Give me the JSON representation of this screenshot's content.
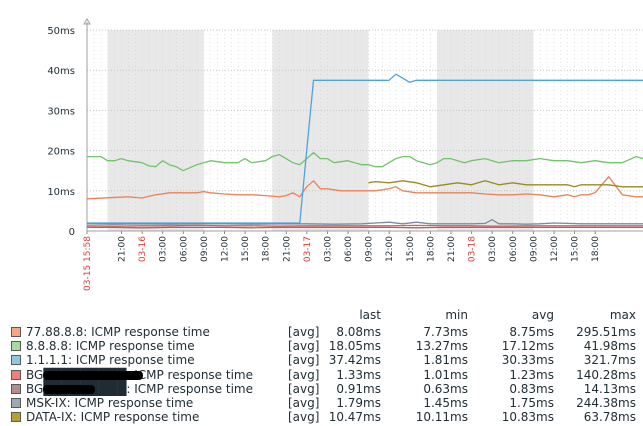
{
  "chart_data": {
    "type": "line",
    "ylim": [
      0,
      50
    ],
    "y_ticks": [
      "0",
      "10ms",
      "20ms",
      "30ms",
      "40ms",
      "50ms"
    ],
    "y_tick_values": [
      0,
      10,
      20,
      30,
      40,
      50
    ],
    "x_range_hours": [
      0,
      81
    ],
    "x_tick_labels": [
      {
        "h": 0,
        "label": "03-15 15:58",
        "major": true
      },
      {
        "h": 5.03,
        "label": "21:00",
        "major": false
      },
      {
        "h": 8.03,
        "label": "03-16",
        "major": true
      },
      {
        "h": 11.03,
        "label": "03:00",
        "major": false
      },
      {
        "h": 14.03,
        "label": "06:00",
        "major": false
      },
      {
        "h": 17.03,
        "label": "09:00",
        "major": false
      },
      {
        "h": 20.03,
        "label": "12:00",
        "major": false
      },
      {
        "h": 23.03,
        "label": "15:00",
        "major": false
      },
      {
        "h": 26.03,
        "label": "18:00",
        "major": false
      },
      {
        "h": 29.03,
        "label": "21:00",
        "major": false
      },
      {
        "h": 32.03,
        "label": "03-17",
        "major": true
      },
      {
        "h": 35.03,
        "label": "03:00",
        "major": false
      },
      {
        "h": 38.03,
        "label": "06:00",
        "major": false
      },
      {
        "h": 41.03,
        "label": "09:00",
        "major": false
      },
      {
        "h": 44.03,
        "label": "12:00",
        "major": false
      },
      {
        "h": 47.03,
        "label": "15:00",
        "major": false
      },
      {
        "h": 50.03,
        "label": "18:00",
        "major": false
      },
      {
        "h": 53.03,
        "label": "21:00",
        "major": false
      },
      {
        "h": 56.03,
        "label": "03-18",
        "major": true
      },
      {
        "h": 59.03,
        "label": "03:00",
        "major": false
      },
      {
        "h": 62.03,
        "label": "06:00",
        "major": false
      },
      {
        "h": 65.03,
        "label": "09:00",
        "major": false
      },
      {
        "h": 68.03,
        "label": "12:00",
        "major": false
      },
      {
        "h": 71.03,
        "label": "15:00",
        "major": false
      },
      {
        "h": 74.03,
        "label": "18:00",
        "major": false
      }
    ],
    "shaded_periods_hours": [
      [
        3,
        17
      ],
      [
        27,
        41
      ],
      [
        51,
        65
      ]
    ],
    "series": [
      {
        "name": "77.88.8.8: ICMP response time",
        "color": "#f4a582",
        "stroke": "#e8845a",
        "x": [
          0,
          6,
          8,
          10,
          12,
          16,
          17,
          18,
          20,
          22,
          24,
          26,
          28,
          29,
          30,
          31,
          32,
          33,
          34,
          35,
          37,
          40,
          42,
          44,
          45,
          46,
          48,
          50,
          52,
          54,
          56,
          58,
          60,
          62,
          64,
          66,
          68,
          70,
          71,
          72,
          73,
          74,
          76,
          78,
          80,
          81
        ],
        "values": [
          8,
          8.5,
          8.2,
          9,
          9.5,
          9.5,
          9.8,
          9.5,
          9.2,
          9,
          9,
          8.8,
          8.5,
          8.8,
          9.5,
          8.5,
          11,
          12.5,
          10.5,
          10.5,
          10,
          10,
          10,
          10.5,
          11,
          10,
          9.5,
          9.5,
          9.5,
          9.5,
          9.5,
          9.2,
          9,
          9,
          9.2,
          9,
          8.5,
          9,
          8.5,
          9,
          9,
          9.5,
          13.5,
          9,
          8.5,
          8.5
        ]
      },
      {
        "name": "8.8.8.8: ICMP response time",
        "color": "#a6dba0",
        "stroke": "#72c46a",
        "x": [
          0,
          2,
          3,
          4,
          5,
          6,
          8,
          9,
          10,
          11,
          12,
          13,
          14,
          16,
          17,
          18,
          20,
          22,
          23,
          24,
          26,
          27,
          28,
          30,
          31,
          32,
          33,
          34,
          35,
          36,
          38,
          40,
          41,
          42,
          43,
          44,
          45,
          46,
          47,
          48,
          50,
          51,
          52,
          53,
          54,
          55,
          56,
          58,
          60,
          62,
          64,
          66,
          68,
          70,
          72,
          74,
          76,
          78,
          80,
          81
        ],
        "values": [
          18.5,
          18.5,
          17.5,
          17.5,
          18,
          17.5,
          17,
          16.2,
          16,
          17.5,
          16.5,
          16,
          15,
          16.5,
          17,
          17.5,
          17,
          17,
          18,
          17,
          17.5,
          18.5,
          19,
          17,
          16.5,
          18,
          19.5,
          18,
          18,
          17,
          17.5,
          16.5,
          16.5,
          16,
          16,
          17,
          18,
          18.5,
          18.5,
          17.5,
          16.5,
          17,
          18,
          18,
          17.5,
          17,
          17.5,
          18,
          17,
          17.5,
          17.5,
          18,
          17.5,
          17.5,
          17,
          17.5,
          17,
          17,
          18.5,
          18
        ]
      },
      {
        "name": "1.1.1.1: ICMP response time",
        "color": "#92c5de",
        "stroke": "#4ea3db",
        "x": [
          0,
          2,
          6,
          10,
          16,
          18,
          22,
          26,
          30,
          31,
          32,
          33,
          34,
          36,
          38,
          40,
          44,
          45,
          46,
          47,
          48,
          50,
          52,
          54,
          56,
          58,
          60,
          62,
          64,
          66,
          68,
          70,
          72,
          74,
          76,
          78,
          80,
          81
        ],
        "values": [
          2,
          2,
          2,
          2,
          2,
          2,
          2,
          2,
          2,
          2,
          20,
          37.5,
          37.5,
          37.5,
          37.5,
          37.5,
          37.5,
          39,
          38,
          37,
          37.5,
          37.5,
          37.5,
          37.5,
          37.5,
          37.5,
          37.5,
          37.5,
          37.5,
          37.5,
          37.5,
          37.5,
          37.5,
          37.5,
          37.5,
          37.5,
          37.5,
          37.5
        ]
      },
      {
        "name": "BG█████████: ICMP response time",
        "color": "#f08080",
        "stroke": "#e06060",
        "x": [
          0,
          4,
          8,
          12,
          16,
          20,
          24,
          28,
          32,
          36,
          40,
          44,
          48,
          52,
          56,
          60,
          64,
          68,
          72,
          76,
          81
        ],
        "values": [
          1.3,
          1.2,
          1.3,
          1.3,
          1.4,
          1.3,
          1.3,
          1.2,
          1.3,
          1.3,
          1.3,
          1.3,
          1.4,
          1.3,
          1.3,
          1.2,
          1.3,
          1.3,
          1.3,
          1.3,
          1.3
        ]
      },
      {
        "name": "BG█████████: ICMP response time",
        "color": "#b58b8b",
        "stroke": "#9a6b6b",
        "x": [
          0,
          4,
          8,
          12,
          16,
          20,
          24,
          28,
          32,
          36,
          40,
          44,
          48,
          52,
          56,
          60,
          64,
          68,
          72,
          76,
          81
        ],
        "values": [
          0.9,
          0.9,
          0.8,
          0.9,
          0.9,
          0.9,
          0.8,
          0.9,
          0.9,
          0.9,
          0.9,
          0.9,
          0.8,
          0.9,
          0.9,
          0.9,
          0.9,
          0.9,
          0.9,
          0.9,
          0.9
        ]
      },
      {
        "name": "MSK-IX: ICMP response time",
        "color": "#9ea7b8",
        "stroke": "#7f8a9e",
        "x": [
          0,
          4,
          8,
          12,
          16,
          20,
          24,
          28,
          32,
          36,
          40,
          42,
          44,
          46,
          48,
          50,
          52,
          56,
          58,
          59,
          60,
          62,
          64,
          66,
          68,
          72,
          76,
          81
        ],
        "values": [
          1.8,
          1.7,
          1.8,
          1.7,
          1.8,
          1.8,
          1.7,
          1.8,
          1.8,
          1.7,
          1.8,
          2,
          2.2,
          1.8,
          2.2,
          1.8,
          1.8,
          1.8,
          1.9,
          2.8,
          1.8,
          1.8,
          1.7,
          1.8,
          2,
          1.8,
          1.8,
          1.8
        ]
      },
      {
        "name": "DATA-IX: ICMP response time",
        "color": "#b2a137",
        "stroke": "#9a8a20",
        "x": [
          41,
          42,
          44,
          46,
          48,
          49,
          50,
          52,
          54,
          56,
          58,
          60,
          62,
          64,
          66,
          68,
          70,
          71,
          72,
          74,
          76,
          78,
          80,
          81
        ],
        "values": [
          12,
          12.3,
          12,
          12.5,
          12,
          11.5,
          11,
          11.5,
          12,
          11.5,
          12.5,
          11.5,
          12,
          11.5,
          11.5,
          11.5,
          11.5,
          11,
          11.5,
          11.5,
          11.5,
          11,
          11,
          11
        ]
      }
    ]
  },
  "legend": {
    "headers": {
      "last": "last",
      "min": "min",
      "avg": "avg",
      "max": "max"
    },
    "rows": [
      {
        "name": "77.88.8.8: ICMP response time",
        "func": "[avg]",
        "last": "8.08ms",
        "min": "7.73ms",
        "avg": "8.75ms",
        "max": "295.51ms",
        "color": "#f4a582",
        "redacted": false
      },
      {
        "name": "8.8.8.8: ICMP response time",
        "func": "[avg]",
        "last": "18.05ms",
        "min": "13.27ms",
        "avg": "17.12ms",
        "max": "41.98ms",
        "color": "#a6dba0",
        "redacted": false
      },
      {
        "name": "1.1.1.1: ICMP response time",
        "func": "[avg]",
        "last": "37.42ms",
        "min": "1.81ms",
        "avg": "30.33ms",
        "max": "321.7ms",
        "color": "#92c5de",
        "redacted": false
      },
      {
        "name": "BG█████████: ICMP response time",
        "func": "[avg]",
        "last": "1.33ms",
        "min": "1.01ms",
        "avg": "1.23ms",
        "max": "140.28ms",
        "color": "#f08080",
        "redacted": true
      },
      {
        "name": "BG█████████: ICMP response time",
        "func": "[avg]",
        "last": "0.91ms",
        "min": "0.63ms",
        "avg": "0.83ms",
        "max": "14.13ms",
        "color": "#b58b8b",
        "redacted": true
      },
      {
        "name": "MSK-IX: ICMP response time",
        "func": "[avg]",
        "last": "1.79ms",
        "min": "1.45ms",
        "avg": "1.75ms",
        "max": "244.38ms",
        "color": "#9ea7b8",
        "redacted": false
      },
      {
        "name": "DATA-IX: ICMP response time",
        "func": "[avg]",
        "last": "10.47ms",
        "min": "10.11ms",
        "avg": "10.83ms",
        "max": "63.78ms",
        "color": "#b2a137",
        "redacted": false
      }
    ]
  }
}
